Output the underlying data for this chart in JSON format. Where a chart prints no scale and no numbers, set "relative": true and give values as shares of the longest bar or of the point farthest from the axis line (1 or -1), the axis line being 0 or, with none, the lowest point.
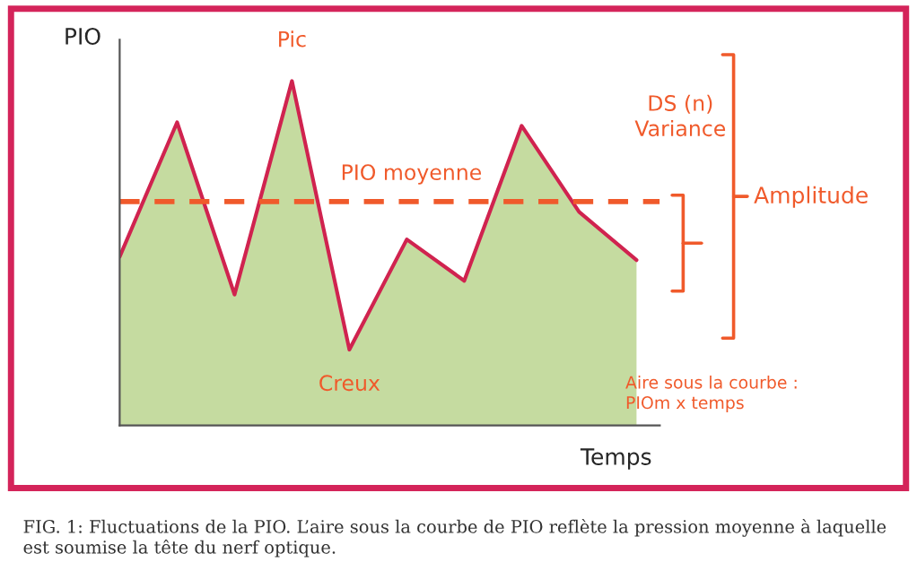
{
  "chart_data": {
    "type": "area",
    "relative": true,
    "xlabel": "Temps",
    "ylabel": "PIO",
    "categories": [
      null,
      null,
      null,
      null,
      null,
      null,
      null,
      null,
      null,
      null
    ],
    "series": [
      {
        "color": "#c5dba0",
        "values": [
          0.49,
          0.88,
          0.38,
          1.0,
          0.22,
          0.54,
          0.42,
          0.87,
          0.62,
          0.48
        ]
      },
      {
        "type": "line",
        "color": "#d0234f",
        "values": [
          0.49,
          0.88,
          0.38,
          1.0,
          0.22,
          0.54,
          0.42,
          0.87,
          0.62,
          0.48
        ]
      }
    ],
    "ref_lines": [
      {
        "axis": "y",
        "value": 0.65,
        "label": "PIO moyenne",
        "color": "#f05a2b",
        "line_style": "dashed"
      }
    ],
    "annotations": [
      "Pic",
      "Creux",
      "DS (n)\nVariance",
      "Amplitude",
      "Aire sous la courbe :\nPIOm x temps",
      "FIG. 1: Fluctuations de la PIO. L’aire sous la courbe de PIO reflète la pression moyenne à laquelle est soumise la tête du nerf optique."
    ]
  }
}
